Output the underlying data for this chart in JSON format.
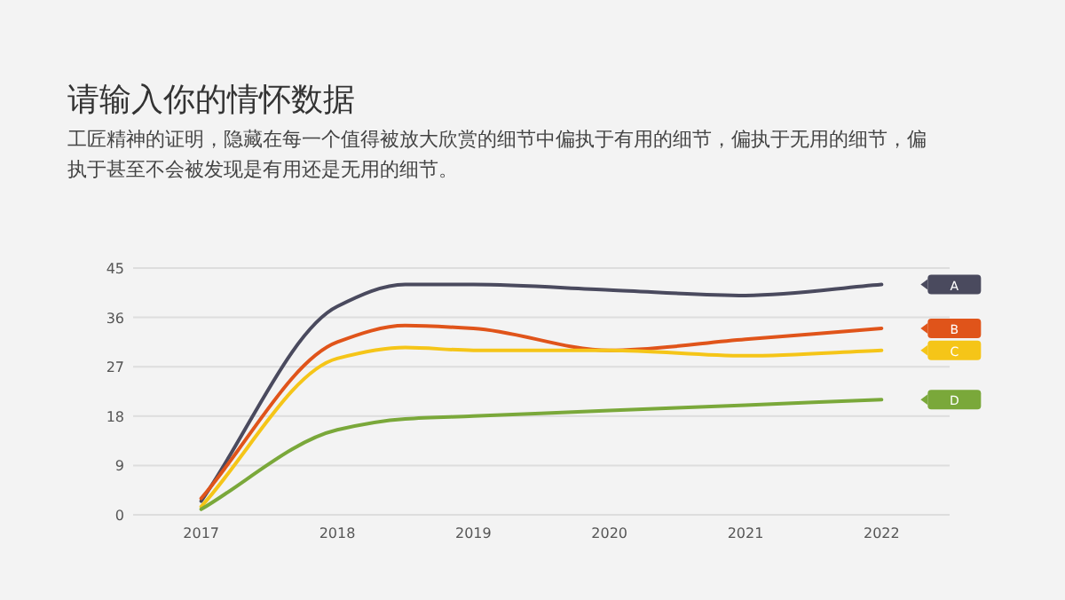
{
  "chart_data": {
    "type": "line",
    "title": "请输入你的情怀数据",
    "subtitle": "工匠精神的证明，隐藏在每一个值得被放大欣赏的细节中偏执于有用的细节，偏执于无用的细节，偏执于甚至不会被发现是有用还是无用的细节。",
    "x": [
      2017,
      2018,
      2018.5,
      2019,
      2020,
      2021,
      2022
    ],
    "xlim": [
      2016.5,
      2022.5
    ],
    "xticks": [
      2017,
      2018,
      2019,
      2020,
      2021,
      2022
    ],
    "ylim": [
      0,
      45
    ],
    "yticks": [
      0,
      9,
      18,
      27,
      36,
      45
    ],
    "grid": "y",
    "legend": "right",
    "marker": "none",
    "line_style": "solid",
    "series": [
      {
        "name": "A",
        "color": "#4a4a5e",
        "values": [
          2.5,
          38,
          42,
          42,
          41,
          40,
          42
        ]
      },
      {
        "name": "B",
        "color": "#e0541a",
        "values": [
          3,
          31.5,
          34.5,
          34,
          30,
          32,
          34
        ]
      },
      {
        "name": "C",
        "color": "#f5c518",
        "values": [
          1.5,
          28.5,
          30.5,
          30,
          30,
          29,
          30
        ]
      },
      {
        "name": "D",
        "color": "#7aa83a",
        "values": [
          1,
          15.5,
          17.5,
          18,
          19,
          20,
          21
        ]
      }
    ]
  }
}
